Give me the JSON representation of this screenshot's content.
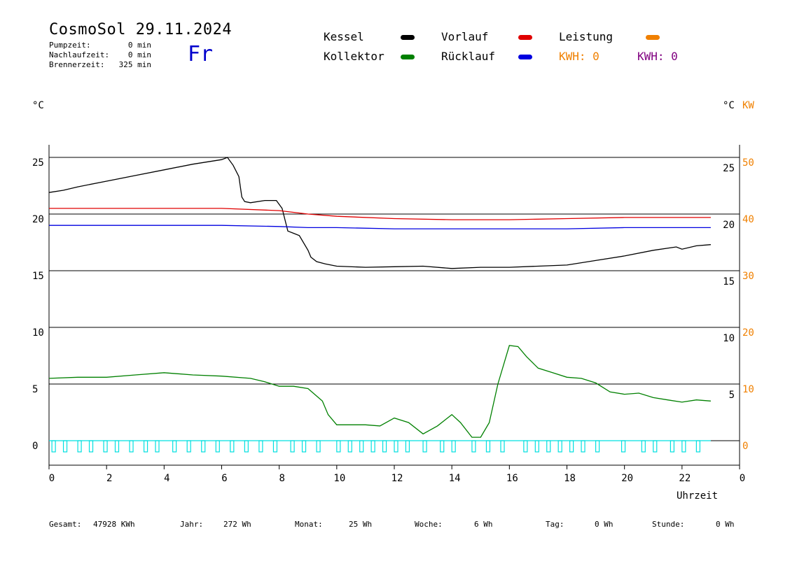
{
  "header": {
    "title": "CosmoSol 29.11.2024",
    "day": "Fr",
    "pump_label": "Pumpzeit:",
    "pump_value": "0 min",
    "nachlauf_label": "Nachlaufzeit:",
    "nachlauf_value": "0 min",
    "brenner_label": "Brennerzeit:",
    "brenner_value": "325 min"
  },
  "legend": {
    "kessel": "Kessel",
    "kollektor": "Kollektor",
    "vorlauf": "Vorlauf",
    "ruecklauf": "Rücklauf",
    "leistung": "Leistung",
    "kwh1": "KWH: 0",
    "kwh2": "KWH: 0",
    "colors": {
      "kessel": "#000000",
      "kollektor": "#008000",
      "vorlauf": "#e00000",
      "ruecklauf": "#0000e0",
      "leistung": "#f08000",
      "kwh2": "#800080",
      "pump": "#00e0e0"
    }
  },
  "units": {
    "left": "°C",
    "right_c": "°C",
    "right_kw": "KW"
  },
  "footer": {
    "gesamt_label": "Gesamt:",
    "gesamt_value": "47928 KWh",
    "jahr_label": "Jahr:",
    "jahr_value": "272 Wh",
    "monat_label": "Monat:",
    "monat_value": "25 Wh",
    "woche_label": "Woche:",
    "woche_value": "6 Wh",
    "tag_label": "Tag:",
    "tag_value": "0 Wh",
    "stunde_label": "Stunde:",
    "stunde_value": "0 Wh"
  },
  "chart_data": {
    "type": "line",
    "xlabel": "Uhrzeit",
    "xlim": [
      0,
      24
    ],
    "x_ticks": [
      "0",
      "2",
      "4",
      "6",
      "8",
      "10",
      "12",
      "14",
      "16",
      "18",
      "20",
      "22",
      "0"
    ],
    "upper_panel": {
      "ylim": [
        15,
        25
      ],
      "left_ticks": [
        "25",
        "20",
        "15"
      ],
      "right_c_ticks": [
        "25",
        "20",
        "15"
      ],
      "right_kw_ticks": [
        "50",
        "40",
        "30"
      ],
      "series": [
        {
          "name": "Kessel",
          "color": "#000000",
          "x": [
            0,
            0.5,
            1,
            2,
            3,
            4,
            5,
            6,
            6.2,
            6.4,
            6.6,
            6.7,
            6.8,
            7,
            7.5,
            7.9,
            8.1,
            8.2,
            8.3,
            8.5,
            8.7,
            9,
            9.1,
            9.3,
            9.6,
            10,
            11,
            12,
            13,
            14,
            15,
            16,
            17,
            18,
            19,
            20,
            21,
            21.8,
            22,
            22.5,
            23
          ],
          "y": [
            21.9,
            22.1,
            22.4,
            22.9,
            23.4,
            23.9,
            24.4,
            24.8,
            25.0,
            24.3,
            23.3,
            21.5,
            21.1,
            21.0,
            21.2,
            21.2,
            20.5,
            19.5,
            18.5,
            18.3,
            18.1,
            16.8,
            16.2,
            15.8,
            15.6,
            15.4,
            15.3,
            15.35,
            15.4,
            15.2,
            15.3,
            15.3,
            15.4,
            15.5,
            15.9,
            16.3,
            16.8,
            17.1,
            16.9,
            17.2,
            17.3
          ]
        },
        {
          "name": "Vorlauf",
          "color": "#e00000",
          "x": [
            0,
            2,
            4,
            6,
            8,
            9,
            10,
            12,
            14,
            16,
            18,
            20,
            22,
            23
          ],
          "y": [
            20.5,
            20.5,
            20.5,
            20.5,
            20.3,
            20.0,
            19.8,
            19.6,
            19.5,
            19.5,
            19.6,
            19.7,
            19.7,
            19.7
          ]
        },
        {
          "name": "Rücklauf",
          "color": "#0000e0",
          "x": [
            0,
            2,
            4,
            6,
            8,
            9,
            10,
            12,
            14,
            16,
            18,
            20,
            22,
            23
          ],
          "y": [
            19.0,
            19.0,
            19.0,
            19.0,
            18.9,
            18.8,
            18.8,
            18.7,
            18.7,
            18.7,
            18.7,
            18.8,
            18.8,
            18.8
          ]
        }
      ]
    },
    "lower_panel": {
      "ylim": [
        0,
        10
      ],
      "left_ticks": [
        "10",
        "5",
        "0"
      ],
      "right_c_ticks": [
        "10",
        "5"
      ],
      "right_kw_ticks": [
        "20",
        "10",
        "0"
      ],
      "series": [
        {
          "name": "Kollektor",
          "color": "#008000",
          "x": [
            0,
            1,
            2,
            3,
            4,
            5,
            6,
            7,
            7.5,
            8,
            8.5,
            9,
            9.5,
            9.7,
            10,
            10.5,
            11,
            11.5,
            12,
            12.5,
            13,
            13.5,
            14,
            14.3,
            14.7,
            15,
            15.3,
            15.6,
            16,
            16.3,
            16.6,
            17,
            17.5,
            18,
            18.5,
            19,
            19.5,
            20,
            20.5,
            21,
            21.5,
            22,
            22.5,
            23
          ],
          "y": [
            5.5,
            5.6,
            5.6,
            5.8,
            6.0,
            5.8,
            5.7,
            5.5,
            5.2,
            4.8,
            4.8,
            4.6,
            3.5,
            2.3,
            1.4,
            1.4,
            1.4,
            1.3,
            2.0,
            1.6,
            0.6,
            1.3,
            2.3,
            1.6,
            0.3,
            0.3,
            1.6,
            5.0,
            8.4,
            8.3,
            7.4,
            6.4,
            6.0,
            5.6,
            5.5,
            5.1,
            4.3,
            4.1,
            4.2,
            3.8,
            3.6,
            3.4,
            3.6,
            3.5
          ]
        }
      ],
      "pump_pulse_hours": [
        0.1,
        0.5,
        1.0,
        1.4,
        1.9,
        2.3,
        2.8,
        3.3,
        3.7,
        4.3,
        4.8,
        5.3,
        5.8,
        6.3,
        6.8,
        7.3,
        7.8,
        8.4,
        8.8,
        9.3,
        10.0,
        10.4,
        10.8,
        11.2,
        11.6,
        12.0,
        12.4,
        13.0,
        13.6,
        14.0,
        14.7,
        15.2,
        15.7,
        16.5,
        16.9,
        17.3,
        17.7,
        18.1,
        18.5,
        19.0,
        19.9,
        20.6,
        21.0,
        21.6,
        22.0,
        22.5
      ]
    }
  }
}
